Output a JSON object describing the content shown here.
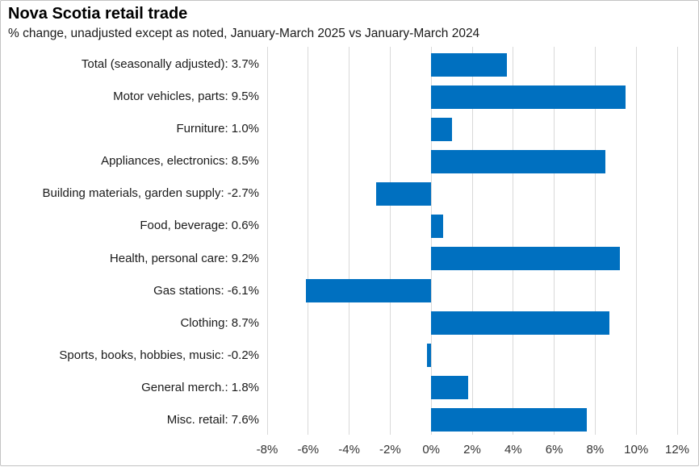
{
  "chart": {
    "title": "Nova Scotia retail trade",
    "subtitle": "% change, unadjusted except as noted, January-March 2025 vs January-March 2024"
  },
  "chart_data": {
    "type": "bar",
    "orientation": "horizontal",
    "title": "Nova Scotia retail trade",
    "subtitle": "% change, unadjusted except as noted, January-March 2025 vs January-March 2024",
    "categories": [
      "Total (seasonally adjusted)",
      "Motor vehicles, parts",
      "Furniture",
      "Appliances, electronics",
      "Building materials, garden supply",
      "Food, beverage",
      "Health, personal care",
      "Gas stations",
      "Clothing",
      "Sports, books, hobbies, music",
      "General merch.",
      "Misc. retail"
    ],
    "values": [
      3.7,
      9.5,
      1.0,
      8.5,
      -2.7,
      0.6,
      9.2,
      -6.1,
      8.7,
      -0.2,
      1.8,
      7.6
    ],
    "category_axis_labels": [
      "Total (seasonally adjusted): 3.7%",
      "Motor vehicles, parts: 9.5%",
      "Furniture: 1.0%",
      "Appliances, electronics: 8.5%",
      "Building materials, garden supply: -2.7%",
      "Food, beverage: 0.6%",
      "Health, personal care: 9.2%",
      "Gas stations: -6.1%",
      "Clothing: 8.7%",
      "Sports, books, hobbies, music: -0.2%",
      "General merch.: 1.8%",
      "Misc. retail: 7.6%"
    ],
    "xlabel": "",
    "ylabel": "",
    "xlim": [
      -8,
      12
    ],
    "x_tick_step": 2,
    "x_tick_labels": [
      "-8%",
      "-6%",
      "-4%",
      "-2%",
      "0%",
      "2%",
      "4%",
      "6%",
      "8%",
      "10%",
      "12%"
    ],
    "grid": true,
    "legend": false,
    "bar_color": "#0070C0",
    "gridline_color": "#D9D9D9",
    "axis_text_color": "#333333"
  }
}
